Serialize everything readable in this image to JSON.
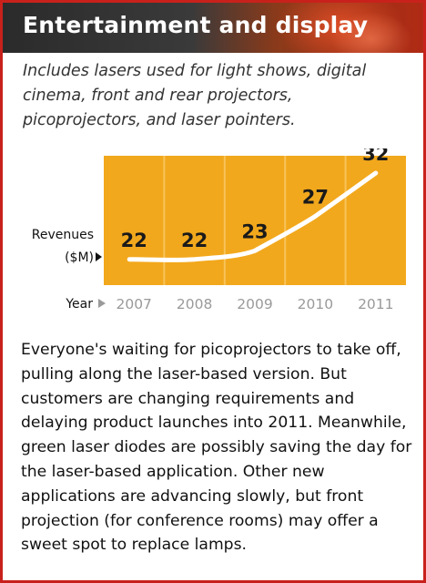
{
  "header": {
    "title": "Entertainment and display"
  },
  "subtitle": "Includes lasers used for light shows, digital cinema, front and rear projectors, picoprojectors, and laser pointers.",
  "chart_data": {
    "type": "line",
    "ylabel_line1": "Revenues",
    "ylabel_line2": "($M)",
    "xlabel": "Year",
    "categories": [
      "2007",
      "2008",
      "2009",
      "2010",
      "2011"
    ],
    "values": [
      22,
      22,
      23,
      27,
      32
    ],
    "data_labels": [
      "22",
      "22",
      "23",
      "27",
      "32"
    ],
    "colors": {
      "plot_background": "#f2a81c",
      "line": "#ffffff",
      "labels": "#1a1a1a",
      "ticks": "#9a9a9a"
    }
  },
  "body_text": "Everyone's waiting for picoprojectors to take off, pulling along the laser-based version. But customers are changing requirements and delaying product launches into 2011. Meanwhile, green laser diodes are possibly saving the day for the laser-based application. Other new applications are advancing slowly, but front projection (for conference rooms) may offer a sweet spot to replace lamps.",
  "colors": {
    "frame_border": "#c8211c",
    "header_text": "#ffffff"
  }
}
